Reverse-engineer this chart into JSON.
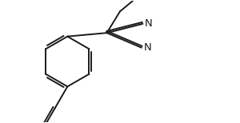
{
  "background": "#ffffff",
  "line_color": "#1a1a1a",
  "line_width": 1.4,
  "font_size": 9.5,
  "figure_width": 3.0,
  "figure_height": 1.54,
  "dpi": 100,
  "xlim": [
    0,
    10
  ],
  "ylim": [
    0,
    5.1
  ]
}
